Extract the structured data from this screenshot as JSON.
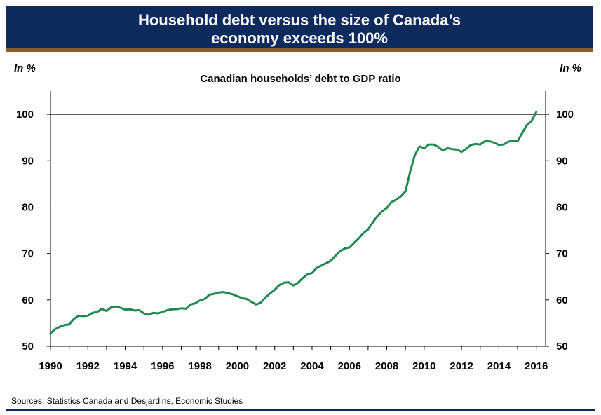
{
  "header": {
    "title_line1": "Household debt versus the size of Canada’s",
    "title_line2": "economy exceeds 100%"
  },
  "unit_left": "In %",
  "unit_right": "In %",
  "footer": {
    "source": "Sources: Statistics Canada and Desjardins, Economic Studies"
  },
  "colors": {
    "banner": "#0d2a5c",
    "banner_rule": "#8a5a2b",
    "line": "#1e8a4f"
  },
  "chart_data": {
    "type": "line",
    "title": "Canadian households’ debt to GDP ratio",
    "xlabel": "",
    "ylabel": "In %",
    "xlim": [
      1990,
      2016.5
    ],
    "ylim": [
      50,
      105
    ],
    "x_ticks": [
      "1990",
      "1992",
      "1994",
      "1996",
      "1998",
      "2000",
      "2002",
      "2004",
      "2006",
      "2008",
      "2010",
      "2012",
      "2014",
      "2016"
    ],
    "y_ticks": [
      50,
      60,
      70,
      80,
      90,
      100
    ],
    "reference_line": 100,
    "grid": false,
    "legend": "none",
    "series": [
      {
        "x": [
          1990.0,
          1990.25,
          1990.5,
          1990.75,
          1991.0,
          1991.25,
          1991.5,
          1991.75,
          1992.0,
          1992.25,
          1992.5,
          1992.75,
          1993.0,
          1993.25,
          1993.5,
          1993.75,
          1994.0,
          1994.25,
          1994.5,
          1994.75,
          1995.0,
          1995.25,
          1995.5,
          1995.75,
          1996.0,
          1996.25,
          1996.5,
          1996.75,
          1997.0,
          1997.25,
          1997.5,
          1997.75,
          1998.0,
          1998.25,
          1998.5,
          1998.75,
          1999.0,
          1999.25,
          1999.5,
          1999.75,
          2000.0,
          2000.25,
          2000.5,
          2000.75,
          2001.0,
          2001.25,
          2001.5,
          2001.75,
          2002.0,
          2002.25,
          2002.5,
          2002.75,
          2003.0,
          2003.25,
          2003.5,
          2003.75,
          2004.0,
          2004.25,
          2004.5,
          2004.75,
          2005.0,
          2005.25,
          2005.5,
          2005.75,
          2006.0,
          2006.25,
          2006.5,
          2006.75,
          2007.0,
          2007.25,
          2007.5,
          2007.75,
          2008.0,
          2008.25,
          2008.5,
          2008.75,
          2009.0,
          2009.25,
          2009.5,
          2009.75,
          2010.0,
          2010.25,
          2010.5,
          2010.75,
          2011.0,
          2011.25,
          2011.5,
          2011.75,
          2012.0,
          2012.25,
          2012.5,
          2012.75,
          2013.0,
          2013.25,
          2013.5,
          2013.75,
          2014.0,
          2014.25,
          2014.5,
          2014.75,
          2015.0,
          2015.25,
          2015.5,
          2015.75,
          2016.0
        ],
        "y": [
          52.8,
          53.7,
          54.2,
          54.6,
          54.7,
          55.9,
          56.6,
          56.5,
          56.6,
          57.2,
          57.4,
          58.1,
          57.6,
          58.4,
          58.6,
          58.3,
          57.9,
          58.0,
          57.7,
          57.8,
          57.1,
          56.8,
          57.2,
          57.1,
          57.4,
          57.8,
          58.0,
          58.0,
          58.2,
          58.1,
          59.0,
          59.3,
          59.9,
          60.2,
          61.1,
          61.3,
          61.6,
          61.7,
          61.5,
          61.2,
          60.8,
          60.4,
          60.2,
          59.6,
          59.0,
          59.4,
          60.5,
          61.4,
          62.2,
          63.2,
          63.7,
          63.8,
          63.1,
          63.7,
          64.7,
          65.5,
          65.8,
          66.9,
          67.4,
          67.9,
          68.4,
          69.5,
          70.5,
          71.1,
          71.3,
          72.3,
          73.3,
          74.4,
          75.2,
          76.7,
          78.1,
          79.1,
          79.8,
          81.1,
          81.6,
          82.3,
          83.4,
          87.6,
          91.2,
          93.1,
          92.7,
          93.5,
          93.5,
          93.0,
          92.2,
          92.7,
          92.5,
          92.4,
          91.9,
          92.6,
          93.4,
          93.6,
          93.5,
          94.2,
          94.2,
          93.9,
          93.4,
          93.5,
          94.1,
          94.3,
          94.2,
          96.0,
          97.7,
          98.6,
          100.5
        ]
      }
    ]
  }
}
